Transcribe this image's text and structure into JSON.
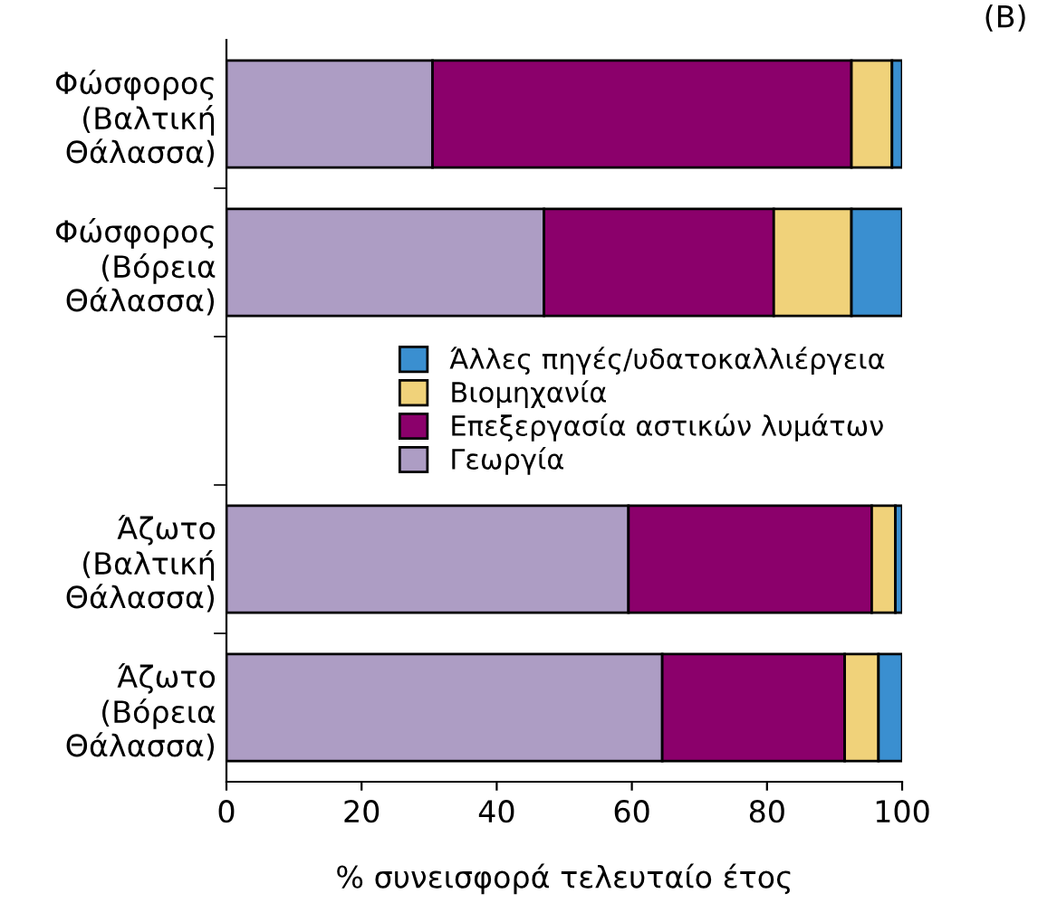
{
  "chart_data": {
    "type": "bar",
    "orientation": "horizontal",
    "stacked": true,
    "categories": [
      "Φώσφορος\n(Βαλτική\nΘάλασσα)",
      "Φώσφορος\n(Βόρεια\nΘάλασσα)",
      null,
      "Άζωτο\n(Βαλτική\nΘάλασσα)",
      "Άζωτο\n(Βόρεια\nΘάλασσα)"
    ],
    "series": [
      {
        "name": "Γεωργία",
        "color": "#ad9dc4",
        "values": [
          30.5,
          47,
          null,
          59.5,
          64.5
        ]
      },
      {
        "name": "Επεξεργασία αστικών λυμάτων",
        "color": "#8b006b",
        "values": [
          62,
          34,
          null,
          36,
          27
        ]
      },
      {
        "name": "Βιομηχανία",
        "color": "#f0d27a",
        "values": [
          6,
          11.5,
          null,
          3.5,
          5
        ]
      },
      {
        "name": "Άλλες πηγές/υδατοκαλλιέργεια",
        "color": "#3a8fd0",
        "values": [
          1.5,
          7.5,
          null,
          1,
          3.5
        ]
      }
    ],
    "xlim": [
      0,
      100
    ],
    "xticks": [
      0,
      20,
      40,
      60,
      80,
      100
    ],
    "xlabel": "% συνεισφορά τελευταίο έτος",
    "annotations": [
      "(B)"
    ],
    "legend": "right",
    "grid": false
  }
}
